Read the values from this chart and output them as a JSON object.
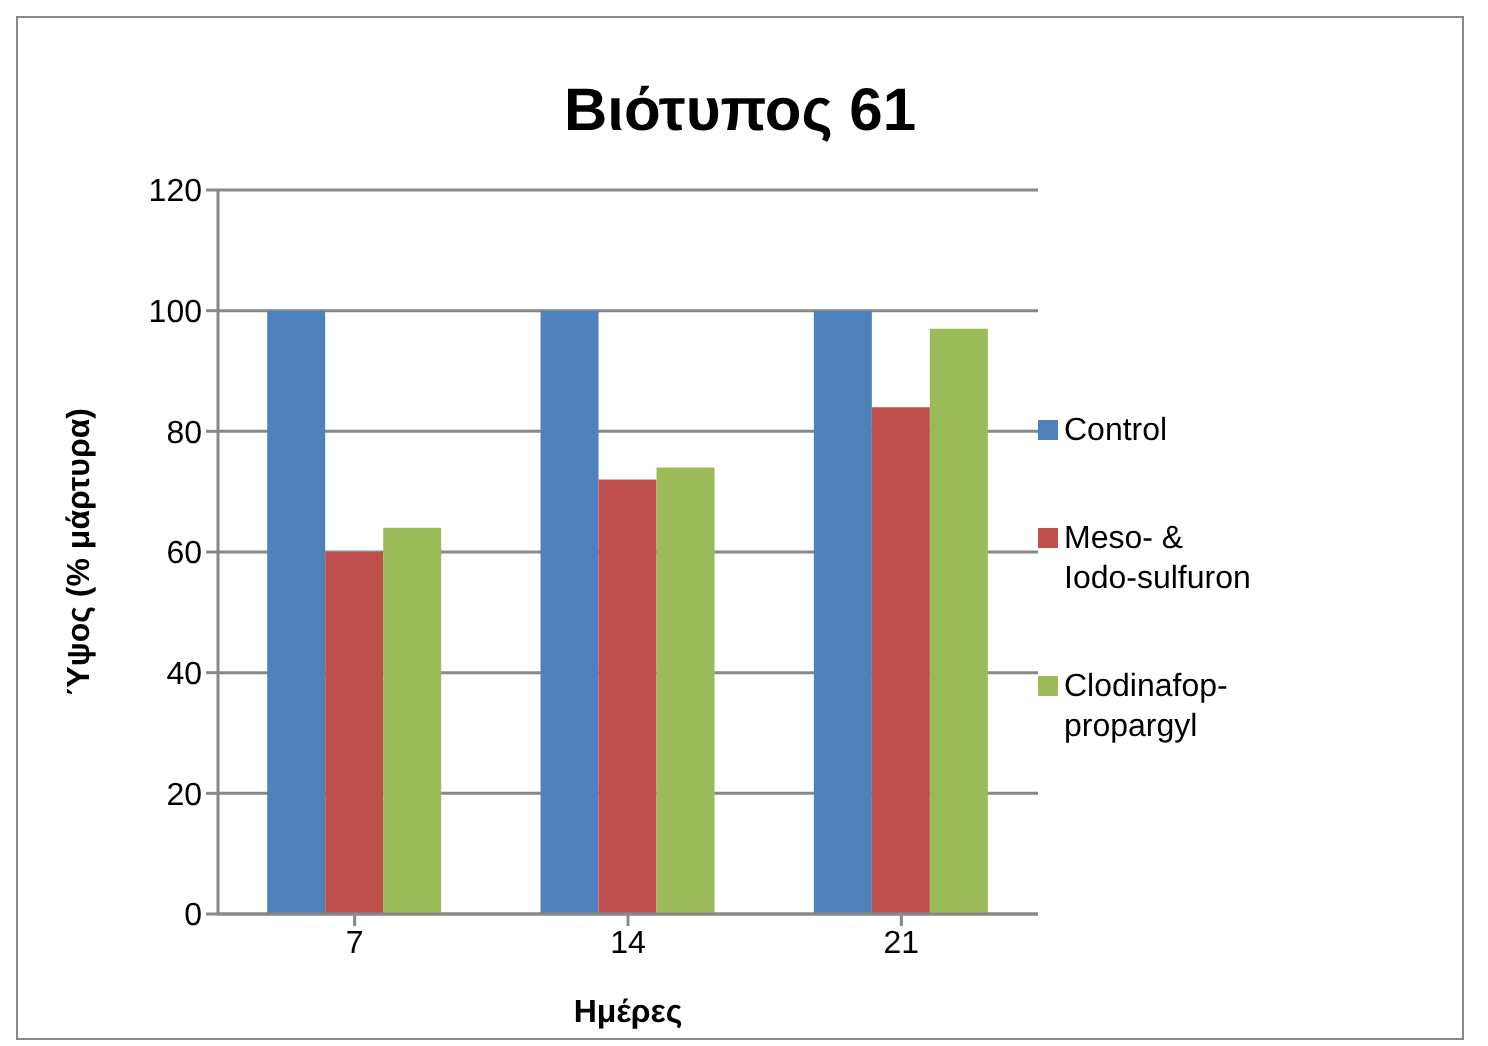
{
  "chart_data": {
    "type": "bar",
    "title": "Βιότυπος 61",
    "xlabel": "Ημέρες",
    "ylabel": "Ύψος (% μάρτυρα)",
    "categories": [
      "7",
      "14",
      "21"
    ],
    "series": [
      {
        "name": "Control",
        "color": "#4f81bd",
        "values": [
          100,
          100,
          100
        ]
      },
      {
        "name": "Meso- & Iodo-sulfuron",
        "color": "#c0504d",
        "values": [
          60,
          72,
          84
        ]
      },
      {
        "name": "Clodinafop-propargyl",
        "color": "#9bbb59",
        "values": [
          64,
          74,
          97
        ]
      }
    ],
    "ylim": [
      0,
      120
    ],
    "yticks": [
      0,
      20,
      40,
      60,
      80,
      100,
      120
    ],
    "grid": "y",
    "legend": "right"
  }
}
